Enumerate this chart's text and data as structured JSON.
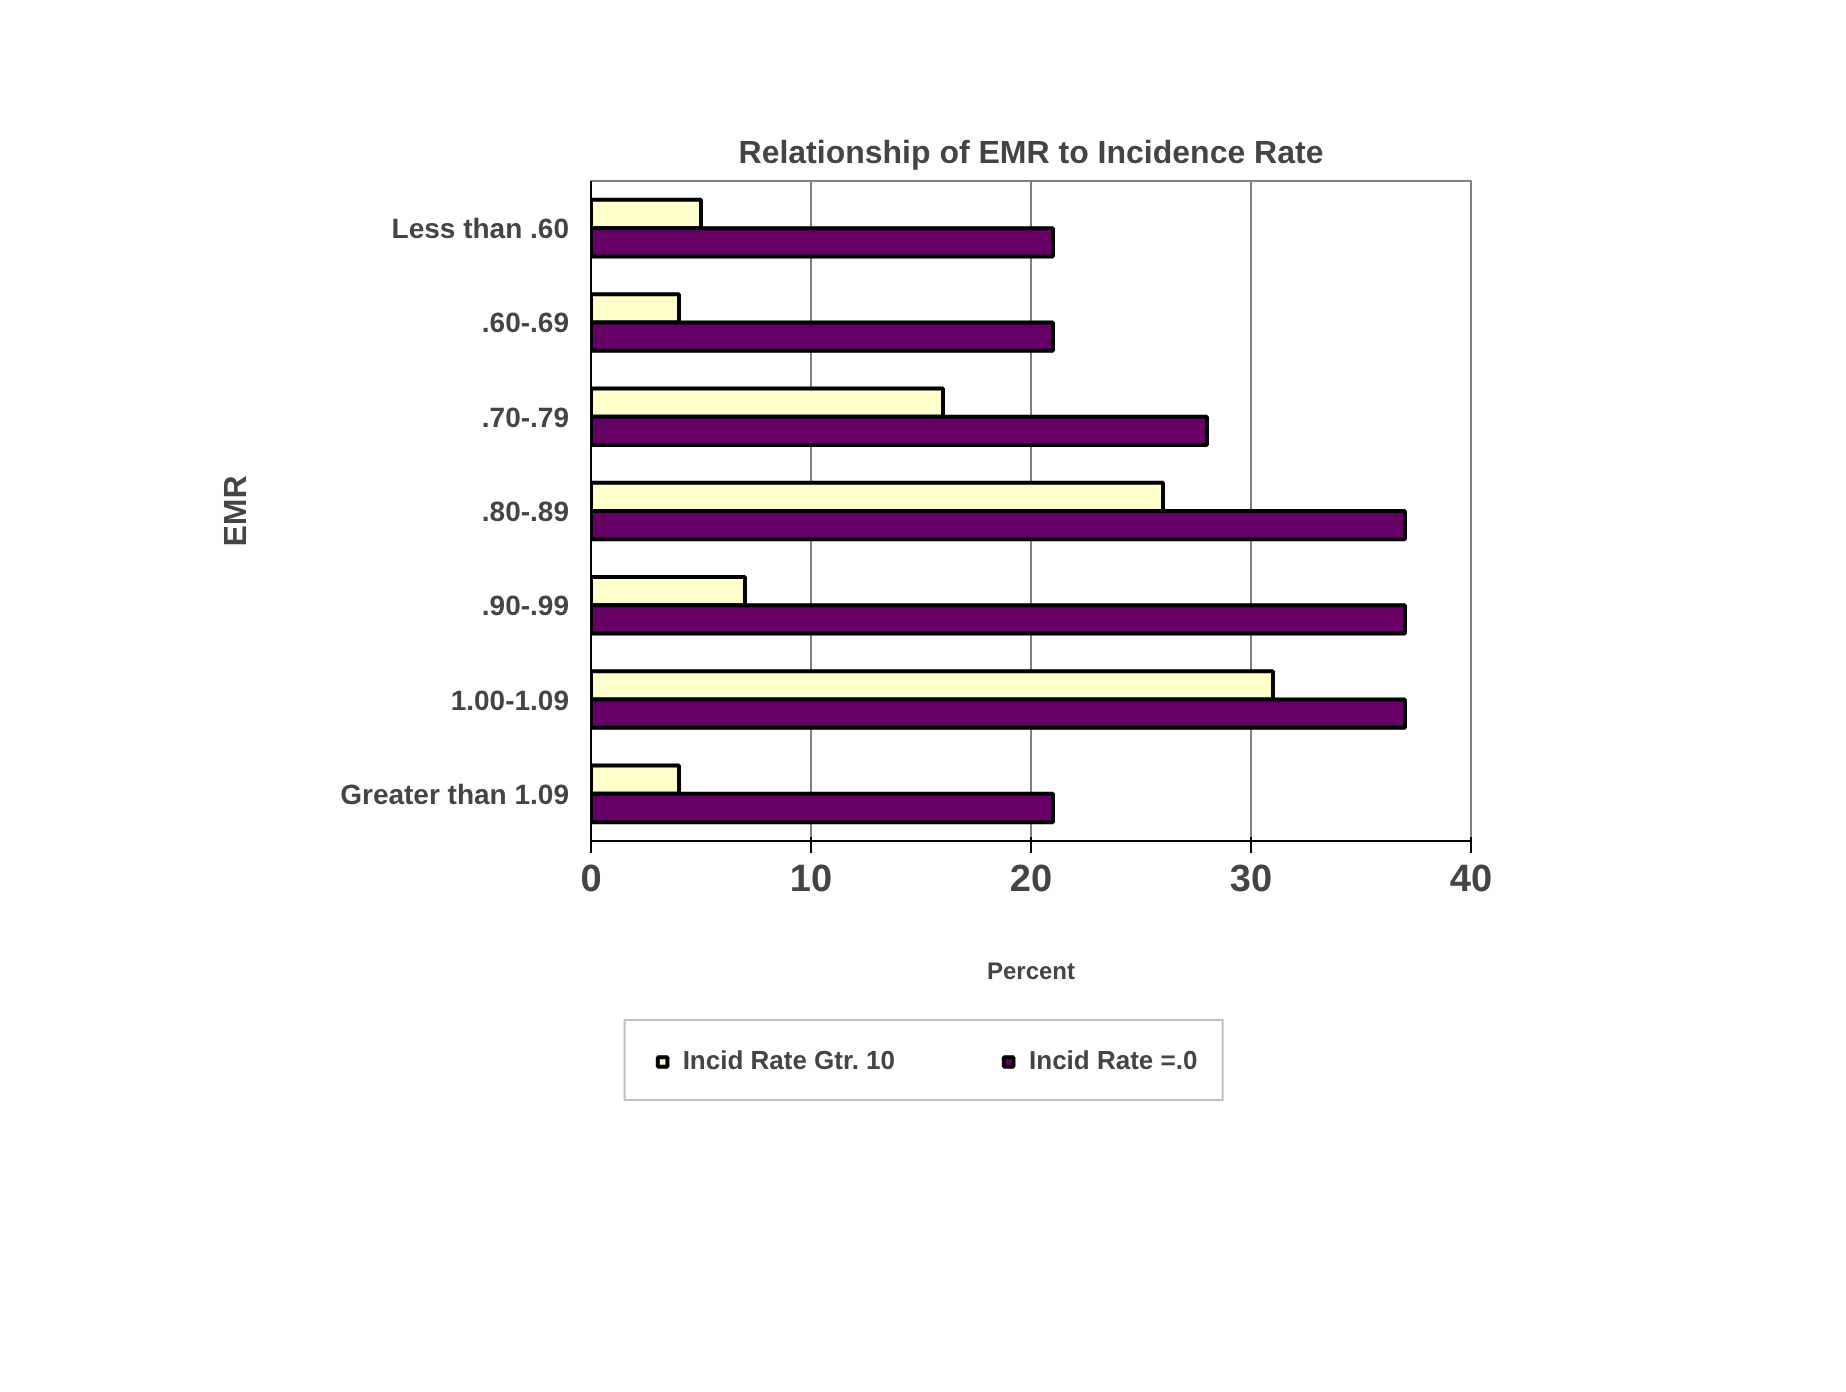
{
  "chart_data": {
    "type": "bar",
    "orientation": "horizontal",
    "title": "Relationship of EMR to Incidence Rate",
    "xlabel": "Percent",
    "ylabel": "EMR",
    "categories": [
      "Less than .60",
      ".60-.69",
      ".70-.79",
      ".80-.89",
      ".90-.99",
      "1.00-1.09",
      "Greater than 1.09"
    ],
    "series": [
      {
        "name": "Incid Rate Gtr. 10",
        "color": "#ffffcc",
        "values": [
          5,
          4,
          16,
          26,
          7,
          31,
          4
        ]
      },
      {
        "name": "Incid Rate =.0",
        "color": "#660066",
        "values": [
          21,
          21,
          28,
          37,
          37,
          37,
          21
        ]
      }
    ],
    "xlim": [
      0,
      40
    ],
    "xticks": [
      0,
      10,
      20,
      30,
      40
    ],
    "grid": "x",
    "legend": "bottom"
  }
}
